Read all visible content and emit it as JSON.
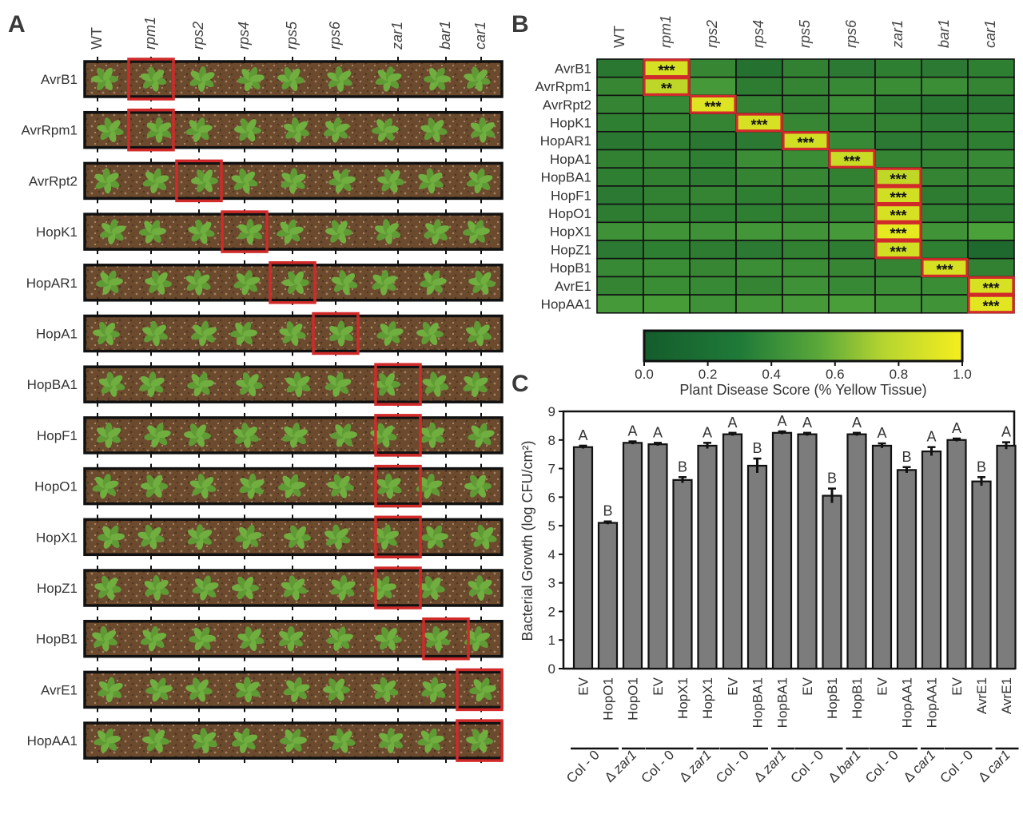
{
  "panels": {
    "a": "A",
    "b": "B",
    "c": "C"
  },
  "genotypes": [
    {
      "label": "WT",
      "italic": false
    },
    {
      "label": "rpm1",
      "italic": true
    },
    {
      "label": "rps2",
      "italic": true
    },
    {
      "label": "rps4",
      "italic": true
    },
    {
      "label": "rps5",
      "italic": true
    },
    {
      "label": "rps6",
      "italic": true
    },
    {
      "label": "zar1",
      "italic": true
    },
    {
      "label": "bar1",
      "italic": true
    },
    {
      "label": "car1",
      "italic": true
    }
  ],
  "effectors": [
    "AvrB1",
    "AvrRpm1",
    "AvrRpt2",
    "HopK1",
    "HopAR1",
    "HopA1",
    "HopBA1",
    "HopF1",
    "HopO1",
    "HopX1",
    "HopZ1",
    "HopB1",
    "AvrE1",
    "HopAA1"
  ],
  "panel_a": {
    "colors": {
      "soil": "#6b4a2e",
      "plant": "#5f9a35",
      "highlight": "#d02a2a",
      "tray_border": "#111111"
    },
    "highlight_column": [
      1,
      1,
      2,
      3,
      4,
      5,
      6,
      6,
      6,
      6,
      6,
      7,
      8,
      8
    ]
  },
  "chart_data": [
    {
      "type": "heatmap",
      "panel": "B",
      "x": [
        "WT",
        "rpm1",
        "rps2",
        "rps4",
        "rps5",
        "rps6",
        "zar1",
        "bar1",
        "car1"
      ],
      "y": [
        "AvrB1",
        "AvrRpm1",
        "AvrRpt2",
        "HopK1",
        "HopAR1",
        "HopA1",
        "HopBA1",
        "HopF1",
        "HopO1",
        "HopX1",
        "HopZ1",
        "HopB1",
        "AvrE1",
        "HopAA1"
      ],
      "values": [
        [
          0.2,
          0.92,
          0.32,
          0.16,
          0.28,
          0.22,
          0.26,
          0.22,
          0.26
        ],
        [
          0.32,
          0.85,
          0.46,
          0.24,
          0.3,
          0.34,
          0.36,
          0.38,
          0.3
        ],
        [
          0.3,
          0.34,
          0.94,
          0.3,
          0.28,
          0.38,
          0.24,
          0.2,
          0.2
        ],
        [
          0.26,
          0.3,
          0.3,
          0.92,
          0.32,
          0.28,
          0.28,
          0.22,
          0.26
        ],
        [
          0.2,
          0.26,
          0.2,
          0.22,
          0.9,
          0.34,
          0.22,
          0.24,
          0.26
        ],
        [
          0.28,
          0.3,
          0.26,
          0.38,
          0.36,
          0.88,
          0.3,
          0.3,
          0.34
        ],
        [
          0.26,
          0.28,
          0.24,
          0.3,
          0.32,
          0.28,
          0.86,
          0.3,
          0.3
        ],
        [
          0.22,
          0.28,
          0.3,
          0.26,
          0.28,
          0.32,
          0.9,
          0.24,
          0.26
        ],
        [
          0.24,
          0.28,
          0.26,
          0.26,
          0.28,
          0.3,
          0.92,
          0.28,
          0.24
        ],
        [
          0.4,
          0.42,
          0.4,
          0.44,
          0.42,
          0.46,
          0.96,
          0.42,
          0.52
        ],
        [
          0.22,
          0.26,
          0.24,
          0.22,
          0.28,
          0.24,
          0.9,
          0.26,
          0.1
        ],
        [
          0.34,
          0.36,
          0.32,
          0.38,
          0.36,
          0.32,
          0.3,
          0.92,
          0.28
        ],
        [
          0.3,
          0.36,
          0.34,
          0.3,
          0.4,
          0.34,
          0.38,
          0.36,
          0.92
        ],
        [
          0.46,
          0.48,
          0.4,
          0.44,
          0.46,
          0.5,
          0.44,
          0.42,
          0.95
        ]
      ],
      "annotations": [
        {
          "row": 0,
          "col": 1,
          "text": "***"
        },
        {
          "row": 1,
          "col": 1,
          "text": "**"
        },
        {
          "row": 2,
          "col": 2,
          "text": "***"
        },
        {
          "row": 3,
          "col": 3,
          "text": "***"
        },
        {
          "row": 4,
          "col": 4,
          "text": "***"
        },
        {
          "row": 5,
          "col": 5,
          "text": "***"
        },
        {
          "row": 6,
          "col": 6,
          "text": "***"
        },
        {
          "row": 7,
          "col": 6,
          "text": "***"
        },
        {
          "row": 8,
          "col": 6,
          "text": "***"
        },
        {
          "row": 9,
          "col": 6,
          "text": "***"
        },
        {
          "row": 10,
          "col": 6,
          "text": "***"
        },
        {
          "row": 11,
          "col": 7,
          "text": "***"
        },
        {
          "row": 12,
          "col": 8,
          "text": "***"
        },
        {
          "row": 13,
          "col": 8,
          "text": "***"
        }
      ],
      "colorbar": {
        "range": [
          0,
          1
        ],
        "ticks": [
          "0.0",
          "0.2",
          "0.4",
          "0.6",
          "0.8",
          "1.0"
        ],
        "label": "Plant Disease Score (% Yellow Tissue)"
      },
      "colors": {
        "low": "#145c2c",
        "mid": "#4ea53a",
        "high": "#f5ee1e",
        "highlight": "#d02a2a"
      }
    },
    {
      "type": "bar",
      "panel": "C",
      "ylabel": "Bacterial Growth (log CFU/cm²)",
      "ylim": [
        0,
        9
      ],
      "yticks": [
        "0",
        "1",
        "2",
        "3",
        "4",
        "5",
        "6",
        "7",
        "8",
        "9"
      ],
      "categories": [
        "EV",
        "HopO1",
        "HopO1",
        "EV",
        "HopX1",
        "HopX1",
        "EV",
        "HopBA1",
        "HopBA1",
        "EV",
        "HopB1",
        "HopB1",
        "EV",
        "HopAA1",
        "HopAA1",
        "EV",
        "AvrE1",
        "AvrE1"
      ],
      "values": [
        7.75,
        5.1,
        7.9,
        7.85,
        6.6,
        7.8,
        8.2,
        7.1,
        8.25,
        8.2,
        6.05,
        8.2,
        7.8,
        6.95,
        7.6,
        8.0,
        6.55,
        7.8
      ],
      "errors": [
        0.05,
        0.05,
        0.05,
        0.05,
        0.1,
        0.1,
        0.05,
        0.25,
        0.05,
        0.05,
        0.25,
        0.05,
        0.08,
        0.1,
        0.15,
        0.05,
        0.15,
        0.12
      ],
      "letters": [
        "A",
        "B",
        "A",
        "A",
        "B",
        "A",
        "A",
        "B",
        "A",
        "A",
        "B",
        "A",
        "A",
        "B",
        "A",
        "A",
        "B",
        "A"
      ],
      "groups": [
        {
          "col": "Col - 0",
          "mut": "zar1"
        },
        {
          "col": "Col - 0",
          "mut": "zar1"
        },
        {
          "col": "Col - 0",
          "mut": "zar1"
        },
        {
          "col": "Col - 0",
          "mut": "bar1"
        },
        {
          "col": "Col - 0",
          "mut": "car1"
        },
        {
          "col": "Col - 0",
          "mut": "car1"
        }
      ],
      "delta_symbol": "Δ",
      "colors": {
        "bar": "#7c7c7c",
        "edge": "#111111"
      }
    }
  ]
}
